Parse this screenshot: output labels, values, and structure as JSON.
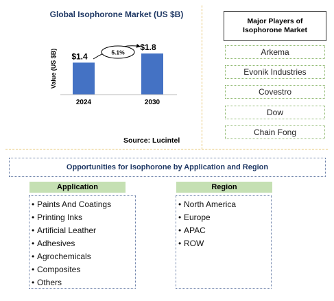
{
  "chart_data": {
    "type": "bar",
    "title": "Global Isophorone Market (US $B)",
    "ylabel": "Value (US $B)",
    "categories": [
      "2024",
      "2030"
    ],
    "values": [
      1.4,
      1.8
    ],
    "data_labels": [
      "$1.4",
      "$1.8"
    ],
    "annotation": "5.1%",
    "bar_color": "#4472c4",
    "ylim": [
      0,
      1.8
    ]
  },
  "source": "Source: Lucintel",
  "players": {
    "title": "Major Players of Isophorone Market",
    "items": [
      "Arkema",
      "Evonik Industries",
      "Covestro",
      "Dow",
      "Chain Fong"
    ]
  },
  "opportunities": {
    "title": "Opportunities for Isophorone by Application and Region",
    "application": {
      "header": "Application",
      "items": [
        "Paints And Coatings",
        "Printing Inks",
        "Artificial Leather",
        "Adhesives",
        "Agrochemicals",
        "Composites",
        "Others"
      ]
    },
    "region": {
      "header": "Region",
      "items": [
        "North America",
        "Europe",
        "APAC",
        "ROW"
      ]
    }
  },
  "colors": {
    "accent": "#4472c4",
    "header_green": "#c5e0b3",
    "title_blue": "#1f3864"
  }
}
